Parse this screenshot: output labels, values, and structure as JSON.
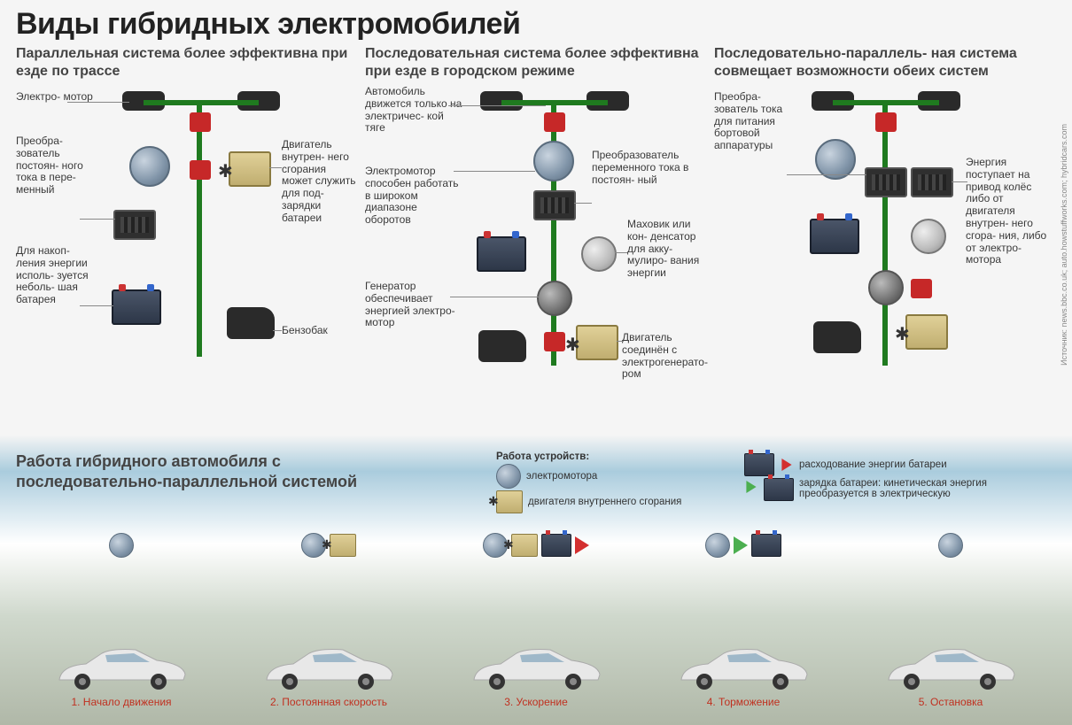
{
  "title": "Виды гибридных электромобилей",
  "source": "Источник: news.bbc.co.uk; auto.howstuffworks.com; hybridcars.com",
  "systems": [
    {
      "desc": "Параллельная система более эффективна при езде по трассе",
      "labels": {
        "motor": "Электро-\nмотор",
        "inverter": "Преобра-\nзователь постоян-\nного тока в пере-\nменный",
        "battery": "Для накоп-\nления энергии исполь-\nзуется неболь-\nшая батарея",
        "engine": "Двигатель внутрен-\nнего сгорания может служить для под-\nзарядки батареи",
        "tank": "Бензобак"
      }
    },
    {
      "desc": "Последовательная система более эффективна при езде в городском режиме",
      "labels": {
        "drive": "Автомобиль движется только на электричес-\nкой тяге",
        "motor_wide": "Электромотор способен работать в широком диапазоне оборотов",
        "inverter": "Преобразователь переменного тока в постоян-\nный",
        "flywheel": "Маховик или кон-\nденсатор для акку-\nмулиро-\nвания энергии",
        "generator": "Генератор обеспечивает энергией электро-\nмотор",
        "engine": "Двигатель соединён с электрогенерато-\nром"
      }
    },
    {
      "desc": "Последовательно-параллель-\nная система совмещает возможности обеих систем",
      "labels": {
        "inverter": "Преобра-\nзователь тока для питания бортовой аппаратуры",
        "energy": "Энергия поступает на привод колёс либо от двигателя внутрен-\nнего сгора-\nния, либо от электро-\nмотора"
      }
    }
  ],
  "subtitle": "Работа гибридного автомобиля с последовательно-параллельной системой",
  "legend": {
    "title": "Работа устройств:",
    "motor": "электромотора",
    "engine": "двигателя внутреннего сгорания"
  },
  "legend2": {
    "discharge": "расходование энергии батареи",
    "charge": "зарядка батареи: кинетическая энергия преобразуется в электрическую"
  },
  "scenarios": [
    {
      "caption": "1. Начало движения",
      "icons": [
        "motor"
      ]
    },
    {
      "caption": "2. Постоянная скорость",
      "icons": [
        "motor",
        "engine"
      ]
    },
    {
      "caption": "3. Ускорение",
      "icons": [
        "motor",
        "engine",
        "battery",
        "arrow-red"
      ]
    },
    {
      "caption": "4. Торможение",
      "icons": [
        "motor",
        "arrow-green",
        "battery"
      ]
    },
    {
      "caption": "5. Остановка",
      "icons": [
        "motor"
      ]
    }
  ],
  "colors": {
    "accent_red": "#c62828",
    "axle_green": "#1f7a1f",
    "caption_red": "#c03020"
  }
}
